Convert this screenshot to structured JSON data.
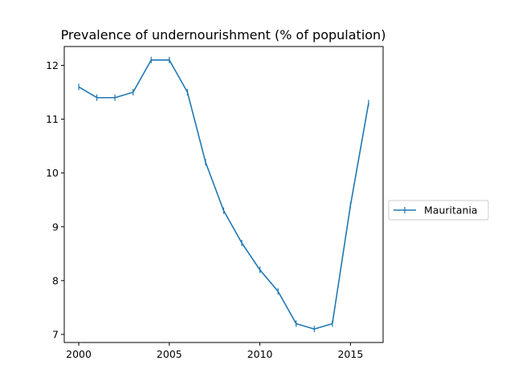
{
  "chart_data": {
    "type": "line",
    "title": "Prevalence of undernourishment (% of population)",
    "xlabel": "",
    "ylabel": "",
    "x": [
      2000,
      2001,
      2002,
      2003,
      2004,
      2005,
      2006,
      2007,
      2008,
      2009,
      2010,
      2011,
      2012,
      2013,
      2014,
      2015,
      2016
    ],
    "series": [
      {
        "name": "Mauritania",
        "color": "#1f77b4",
        "marker": "vertical-line",
        "values": [
          11.6,
          11.4,
          11.4,
          11.5,
          12.1,
          12.1,
          11.5,
          10.2,
          9.3,
          8.7,
          8.2,
          7.8,
          7.2,
          7.1,
          7.2,
          9.4,
          11.3
        ]
      }
    ],
    "xlim": [
      1999.2,
      2016.8
    ],
    "ylim": [
      6.85,
      12.35
    ],
    "xticks": [
      2000,
      2005,
      2010,
      2015
    ],
    "yticks": [
      7,
      8,
      9,
      10,
      11,
      12
    ],
    "grid": false,
    "legend_position": "outside-right"
  }
}
